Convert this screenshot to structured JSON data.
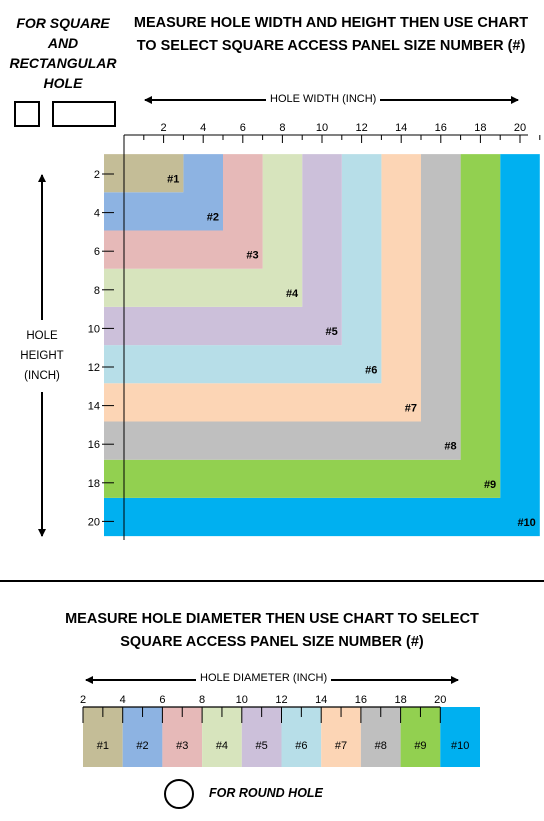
{
  "top": {
    "side_label": [
      "FOR SQUARE",
      "AND",
      "RECTANGULAR",
      "HOLE"
    ],
    "title_lines": [
      "MEASURE HOLE WIDTH AND HEIGHT THEN USE CHART",
      "TO SELECT SQUARE ACCESS PANEL SIZE NUMBER (#)"
    ],
    "x_axis_title": "HOLE WIDTH (INCH)",
    "y_axis_title": [
      "HOLE",
      "HEIGHT",
      "(INCH)"
    ]
  },
  "bottom": {
    "title_lines": [
      "MEASURE HOLE DIAMETER THEN USE CHART TO SELECT",
      "SQUARE ACCESS PANEL SIZE NUMBER (#)"
    ],
    "axis_title": "HOLE DIAMETER (INCH)",
    "round_label": "FOR ROUND HOLE"
  },
  "ticks": [
    "2",
    "4",
    "6",
    "8",
    "10",
    "12",
    "14",
    "16",
    "18",
    "20"
  ],
  "panels": [
    {
      "label": "#1",
      "max_inch": 3,
      "color": "#c4bd97"
    },
    {
      "label": "#2",
      "max_inch": 5,
      "color": "#8db3e2"
    },
    {
      "label": "#3",
      "max_inch": 7,
      "color": "#e6b9b8"
    },
    {
      "label": "#4",
      "max_inch": 9,
      "color": "#d7e4bd"
    },
    {
      "label": "#5",
      "max_inch": 11,
      "color": "#ccc0da"
    },
    {
      "label": "#6",
      "max_inch": 13,
      "color": "#b7dee8"
    },
    {
      "label": "#7",
      "max_inch": 15,
      "color": "#fcd5b5"
    },
    {
      "label": "#8",
      "max_inch": 17,
      "color": "#bfbfbf"
    },
    {
      "label": "#9",
      "max_inch": 19,
      "color": "#92d050"
    },
    {
      "label": "#10",
      "max_inch": 21,
      "color": "#00b0f0"
    }
  ]
}
